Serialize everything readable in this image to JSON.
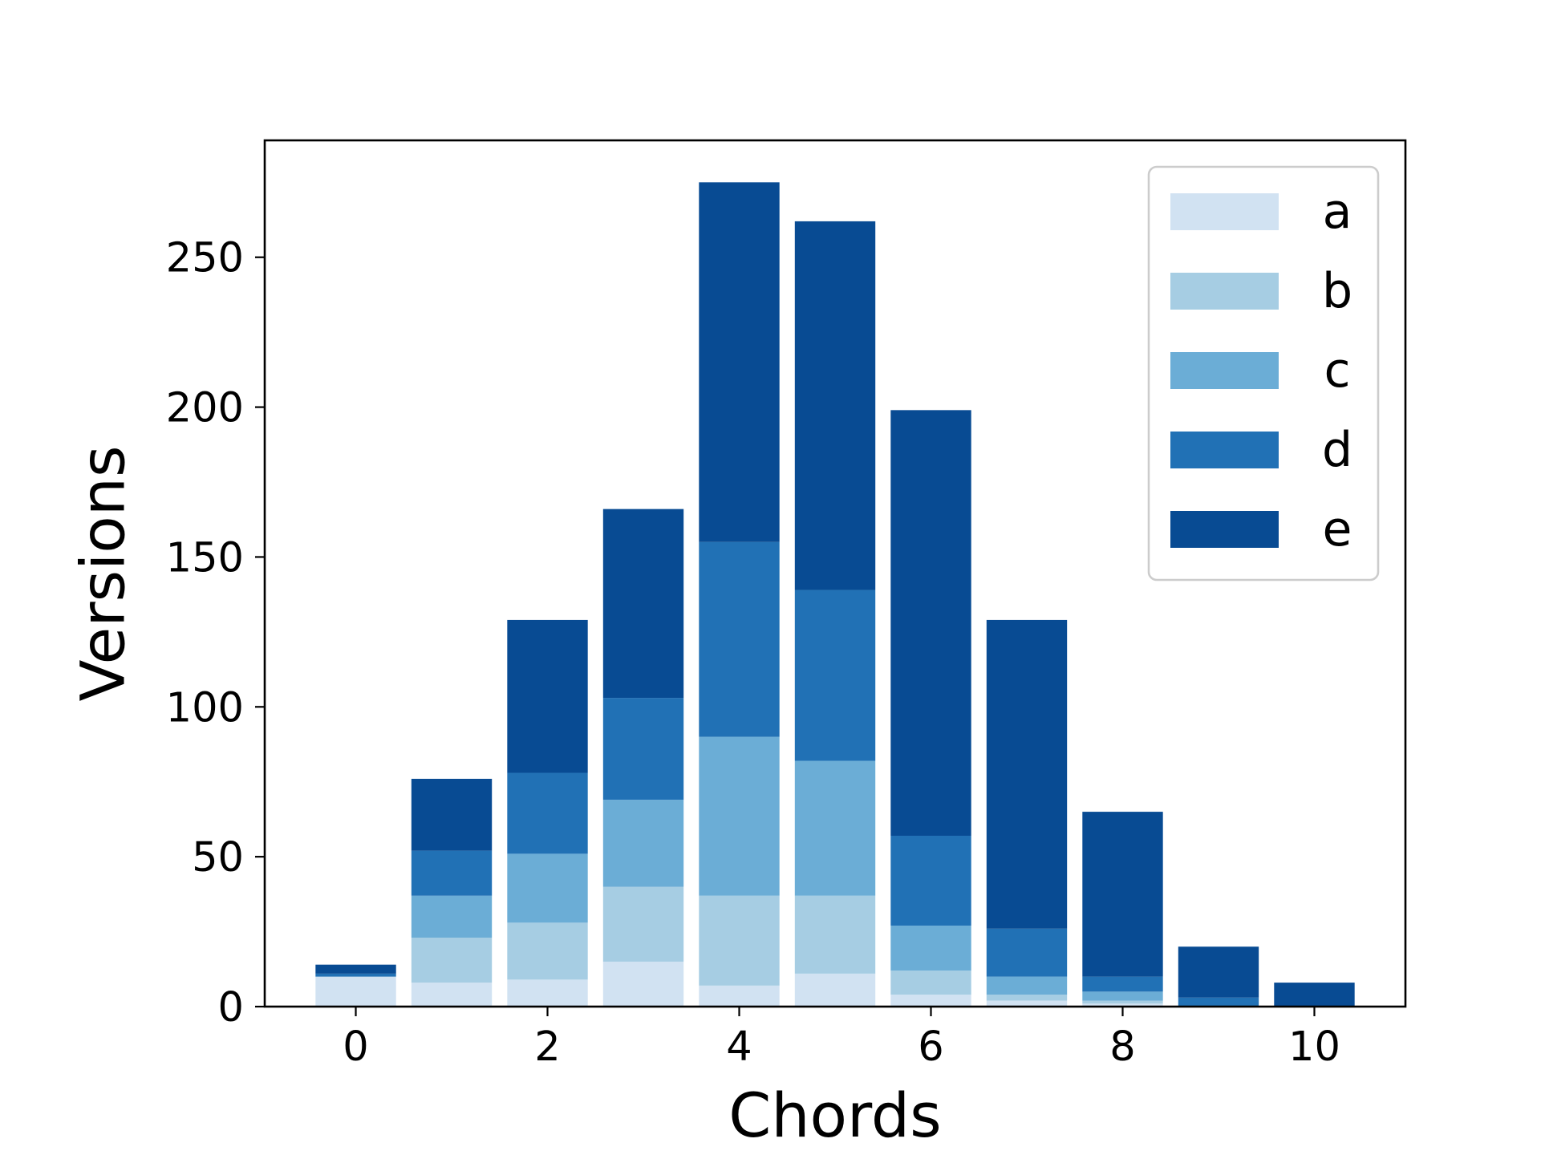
{
  "chart_data": {
    "type": "bar",
    "stacked": true,
    "xlabel": "Chords",
    "ylabel": "Versions",
    "categories": [
      0,
      1,
      2,
      3,
      4,
      5,
      6,
      7,
      8,
      9,
      10
    ],
    "xticks": [
      "0",
      "2",
      "4",
      "6",
      "8",
      "10"
    ],
    "xtick_values": [
      0,
      2,
      4,
      6,
      8,
      10
    ],
    "yticks": [
      "0",
      "50",
      "100",
      "150",
      "200",
      "250"
    ],
    "ytick_values": [
      0,
      50,
      100,
      150,
      200,
      250
    ],
    "xlim": [
      -0.95,
      10.95
    ],
    "ylim": [
      0,
      289
    ],
    "grid": false,
    "legend_position": "top-right",
    "series": [
      {
        "name": "a",
        "color": "#d1e2f2",
        "values": [
          10,
          8,
          9,
          15,
          7,
          11,
          4,
          2,
          1,
          0,
          0
        ]
      },
      {
        "name": "b",
        "color": "#a6cde3",
        "values": [
          0,
          15,
          19,
          25,
          30,
          26,
          8,
          2,
          1,
          0,
          0
        ]
      },
      {
        "name": "c",
        "color": "#6badd6",
        "values": [
          0,
          14,
          23,
          29,
          53,
          45,
          15,
          6,
          3,
          0,
          0
        ]
      },
      {
        "name": "d",
        "color": "#2171b5",
        "values": [
          1,
          15,
          27,
          34,
          65,
          57,
          30,
          16,
          5,
          3,
          0
        ]
      },
      {
        "name": "e",
        "color": "#084b93",
        "values": [
          3,
          24,
          51,
          63,
          120,
          123,
          142,
          103,
          55,
          17,
          8
        ]
      }
    ]
  }
}
